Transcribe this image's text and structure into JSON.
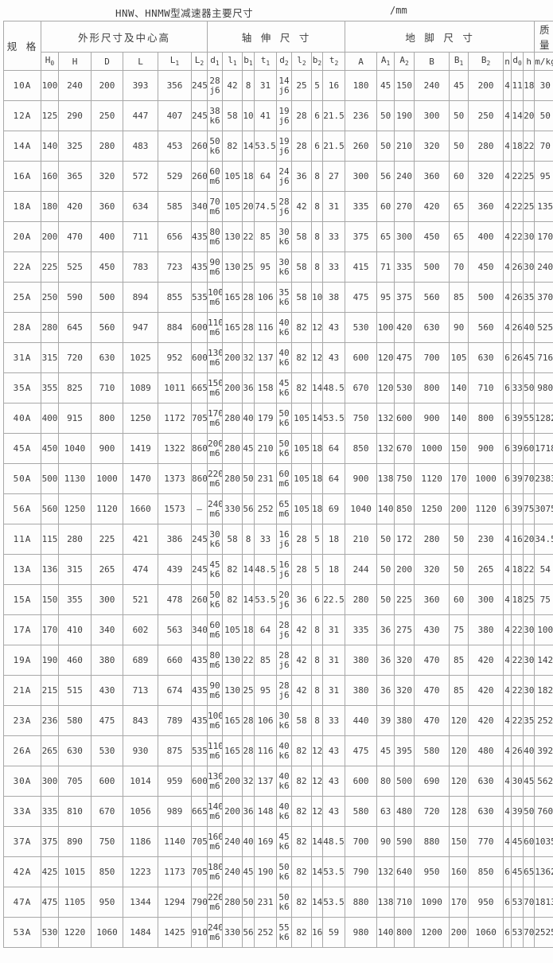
{
  "title": "HNW、HNMW型减速器主要尺寸",
  "unit_label": "/mm",
  "table": {
    "col_groups": [
      {
        "label": "规 格"
      },
      {
        "label": "外形尺寸及中心高"
      },
      {
        "label": "轴 伸 尺 寸"
      },
      {
        "label": "地 脚 尺 寸"
      },
      {
        "label": "质量"
      }
    ],
    "sub_headers": [
      "H_0",
      "H",
      "D",
      "L",
      "L_1",
      "L_2",
      "d_1",
      "l_1",
      "b_1",
      "t_1",
      "d_2",
      "l_2",
      "b_2",
      "t_2",
      "A",
      "A_1",
      "A_2",
      "B",
      "B_1",
      "B_2",
      "n",
      "d_0",
      "h"
    ],
    "mass_header": "m/kg",
    "rows": [
      [
        "10A",
        "100",
        "240",
        "200",
        "393",
        "356",
        "245",
        "28 j6",
        "42",
        "8",
        "31",
        "14 j6",
        "25",
        "5",
        "16",
        "180",
        "45",
        "150",
        "240",
        "45",
        "200",
        "4",
        "11",
        "18",
        "30"
      ],
      [
        "12A",
        "125",
        "290",
        "250",
        "447",
        "407",
        "245",
        "38 k6",
        "58",
        "10",
        "41",
        "19 j6",
        "28",
        "6",
        "21.5",
        "236",
        "50",
        "190",
        "300",
        "50",
        "250",
        "4",
        "14",
        "20",
        "50"
      ],
      [
        "14A",
        "140",
        "325",
        "280",
        "483",
        "453",
        "260",
        "50 k6",
        "82",
        "14",
        "53.5",
        "19 j6",
        "28",
        "6",
        "21.5",
        "260",
        "50",
        "210",
        "320",
        "50",
        "280",
        "4",
        "18",
        "22",
        "70"
      ],
      [
        "16A",
        "160",
        "365",
        "320",
        "572",
        "529",
        "260",
        "60 m6",
        "105",
        "18",
        "64",
        "24 j6",
        "36",
        "8",
        "27",
        "300",
        "56",
        "240",
        "360",
        "60",
        "320",
        "4",
        "22",
        "25",
        "95"
      ],
      [
        "18A",
        "180",
        "420",
        "360",
        "634",
        "585",
        "340",
        "70 m6",
        "105",
        "20",
        "74.5",
        "28 j6",
        "42",
        "8",
        "31",
        "335",
        "60",
        "270",
        "420",
        "65",
        "360",
        "4",
        "22",
        "25",
        "135"
      ],
      [
        "20A",
        "200",
        "470",
        "400",
        "711",
        "656",
        "435",
        "80 m6",
        "130",
        "22",
        "85",
        "30 k6",
        "58",
        "8",
        "33",
        "375",
        "65",
        "300",
        "450",
        "65",
        "400",
        "4",
        "22",
        "30",
        "170"
      ],
      [
        "22A",
        "225",
        "525",
        "450",
        "783",
        "723",
        "435",
        "90 m6",
        "130",
        "25",
        "95",
        "30 k6",
        "58",
        "8",
        "33",
        "415",
        "71",
        "335",
        "500",
        "70",
        "450",
        "4",
        "26",
        "30",
        "240"
      ],
      [
        "25A",
        "250",
        "590",
        "500",
        "894",
        "855",
        "535",
        "100 m6",
        "165",
        "28",
        "106",
        "35 k6",
        "58",
        "10",
        "38",
        "475",
        "95",
        "375",
        "560",
        "85",
        "500",
        "4",
        "26",
        "35",
        "370"
      ],
      [
        "28A",
        "280",
        "645",
        "560",
        "947",
        "884",
        "600",
        "110 m6",
        "165",
        "28",
        "116",
        "40 k6",
        "82",
        "12",
        "43",
        "530",
        "100",
        "420",
        "630",
        "90",
        "560",
        "4",
        "26",
        "40",
        "525"
      ],
      [
        "31A",
        "315",
        "720",
        "630",
        "1025",
        "952",
        "600",
        "130 m6",
        "200",
        "32",
        "137",
        "40 k6",
        "82",
        "12",
        "43",
        "600",
        "120",
        "475",
        "700",
        "105",
        "630",
        "6",
        "26",
        "45",
        "716"
      ],
      [
        "35A",
        "355",
        "825",
        "710",
        "1089",
        "1011",
        "665",
        "150 m6",
        "200",
        "36",
        "158",
        "45 k6",
        "82",
        "14",
        "48.5",
        "670",
        "120",
        "530",
        "800",
        "140",
        "710",
        "6",
        "33",
        "50",
        "980"
      ],
      [
        "40A",
        "400",
        "915",
        "800",
        "1250",
        "1172",
        "705",
        "170 m6",
        "280",
        "40",
        "179",
        "50 k6",
        "105",
        "14",
        "53.5",
        "750",
        "132",
        "600",
        "900",
        "140",
        "800",
        "6",
        "39",
        "55",
        "1282"
      ],
      [
        "45A",
        "450",
        "1040",
        "900",
        "1419",
        "1322",
        "860",
        "200 m6",
        "280",
        "45",
        "210",
        "50 k6",
        "105",
        "18",
        "64",
        "850",
        "132",
        "670",
        "1000",
        "150",
        "900",
        "6",
        "39",
        "60",
        "1718"
      ],
      [
        "50A",
        "500",
        "1130",
        "1000",
        "1470",
        "1373",
        "860",
        "220 m6",
        "280",
        "50",
        "231",
        "60 m6",
        "105",
        "18",
        "64",
        "900",
        "138",
        "750",
        "1120",
        "170",
        "1000",
        "6",
        "39",
        "70",
        "2383"
      ],
      [
        "56A",
        "560",
        "1250",
        "1120",
        "1660",
        "1573",
        "—",
        "240 m6",
        "330",
        "56",
        "252",
        "65 m6",
        "105",
        "18",
        "69",
        "1040",
        "140",
        "850",
        "1250",
        "200",
        "1120",
        "6",
        "39",
        "75",
        "3075"
      ],
      [
        "11A",
        "115",
        "280",
        "225",
        "421",
        "386",
        "245",
        "30 k6",
        "58",
        "8",
        "33",
        "16 j6",
        "28",
        "5",
        "18",
        "210",
        "50",
        "172",
        "280",
        "50",
        "230",
        "4",
        "16",
        "20",
        "34.5"
      ],
      [
        "13A",
        "136",
        "315",
        "265",
        "474",
        "439",
        "245",
        "45 k6",
        "82",
        "14",
        "48.5",
        "16 j6",
        "28",
        "5",
        "18",
        "244",
        "50",
        "200",
        "320",
        "50",
        "265",
        "4",
        "18",
        "22",
        "54"
      ],
      [
        "15A",
        "150",
        "355",
        "300",
        "521",
        "478",
        "260",
        "50 k6",
        "82",
        "14",
        "53.5",
        "20 j6",
        "36",
        "6",
        "22.5",
        "280",
        "50",
        "225",
        "360",
        "60",
        "300",
        "4",
        "18",
        "25",
        "75"
      ],
      [
        "17A",
        "170",
        "410",
        "340",
        "602",
        "563",
        "340",
        "60 m6",
        "105",
        "18",
        "64",
        "28 j6",
        "42",
        "8",
        "31",
        "335",
        "36",
        "275",
        "430",
        "75",
        "380",
        "4",
        "22",
        "30",
        "100"
      ],
      [
        "19A",
        "190",
        "460",
        "380",
        "689",
        "660",
        "435",
        "80 m6",
        "130",
        "22",
        "85",
        "28 j6",
        "42",
        "8",
        "31",
        "380",
        "36",
        "320",
        "470",
        "85",
        "420",
        "4",
        "22",
        "30",
        "142"
      ],
      [
        "21A",
        "215",
        "515",
        "430",
        "713",
        "674",
        "435",
        "90 m6",
        "130",
        "25",
        "95",
        "28 j6",
        "42",
        "8",
        "31",
        "380",
        "36",
        "320",
        "470",
        "85",
        "420",
        "4",
        "22",
        "30",
        "182"
      ],
      [
        "23A",
        "236",
        "580",
        "475",
        "843",
        "789",
        "435",
        "100 m6",
        "165",
        "28",
        "106",
        "30 k6",
        "58",
        "8",
        "33",
        "440",
        "39",
        "380",
        "470",
        "120",
        "420",
        "4",
        "22",
        "35",
        "252"
      ],
      [
        "26A",
        "265",
        "630",
        "530",
        "930",
        "875",
        "535",
        "110 m6",
        "165",
        "28",
        "116",
        "40 k6",
        "82",
        "12",
        "43",
        "475",
        "45",
        "395",
        "580",
        "120",
        "480",
        "4",
        "26",
        "40",
        "392"
      ],
      [
        "30A",
        "300",
        "705",
        "600",
        "1014",
        "959",
        "600",
        "130 m6",
        "200",
        "32",
        "137",
        "40 k6",
        "82",
        "12",
        "43",
        "600",
        "80",
        "500",
        "690",
        "120",
        "630",
        "4",
        "30",
        "45",
        "562"
      ],
      [
        "33A",
        "335",
        "810",
        "670",
        "1056",
        "989",
        "665",
        "140 m6",
        "200",
        "36",
        "148",
        "40 k6",
        "82",
        "12",
        "43",
        "580",
        "63",
        "480",
        "720",
        "128",
        "630",
        "4",
        "39",
        "50",
        "760"
      ],
      [
        "37A",
        "375",
        "890",
        "750",
        "1186",
        "1140",
        "705",
        "160 m6",
        "240",
        "40",
        "169",
        "45 k6",
        "82",
        "14",
        "48.5",
        "700",
        "90",
        "590",
        "880",
        "150",
        "770",
        "4",
        "45",
        "60",
        "1035"
      ],
      [
        "42A",
        "425",
        "1015",
        "850",
        "1223",
        "1173",
        "705",
        "180 m6",
        "240",
        "45",
        "190",
        "50 k6",
        "82",
        "14",
        "53.5",
        "790",
        "132",
        "640",
        "950",
        "160",
        "850",
        "6",
        "45",
        "65",
        "1362"
      ],
      [
        "47A",
        "475",
        "1105",
        "950",
        "1344",
        "1294",
        "790",
        "220 m6",
        "280",
        "50",
        "231",
        "50 k6",
        "82",
        "14",
        "53.5",
        "880",
        "138",
        "710",
        "1090",
        "170",
        "950",
        "6",
        "53",
        "70",
        "1813"
      ],
      [
        "53A",
        "530",
        "1220",
        "1060",
        "1484",
        "1425",
        "910",
        "240 m6",
        "330",
        "56",
        "252",
        "55 k6",
        "82",
        "16",
        "59",
        "980",
        "140",
        "800",
        "1200",
        "200",
        "1060",
        "6",
        "53",
        "70",
        "2525"
      ]
    ]
  }
}
